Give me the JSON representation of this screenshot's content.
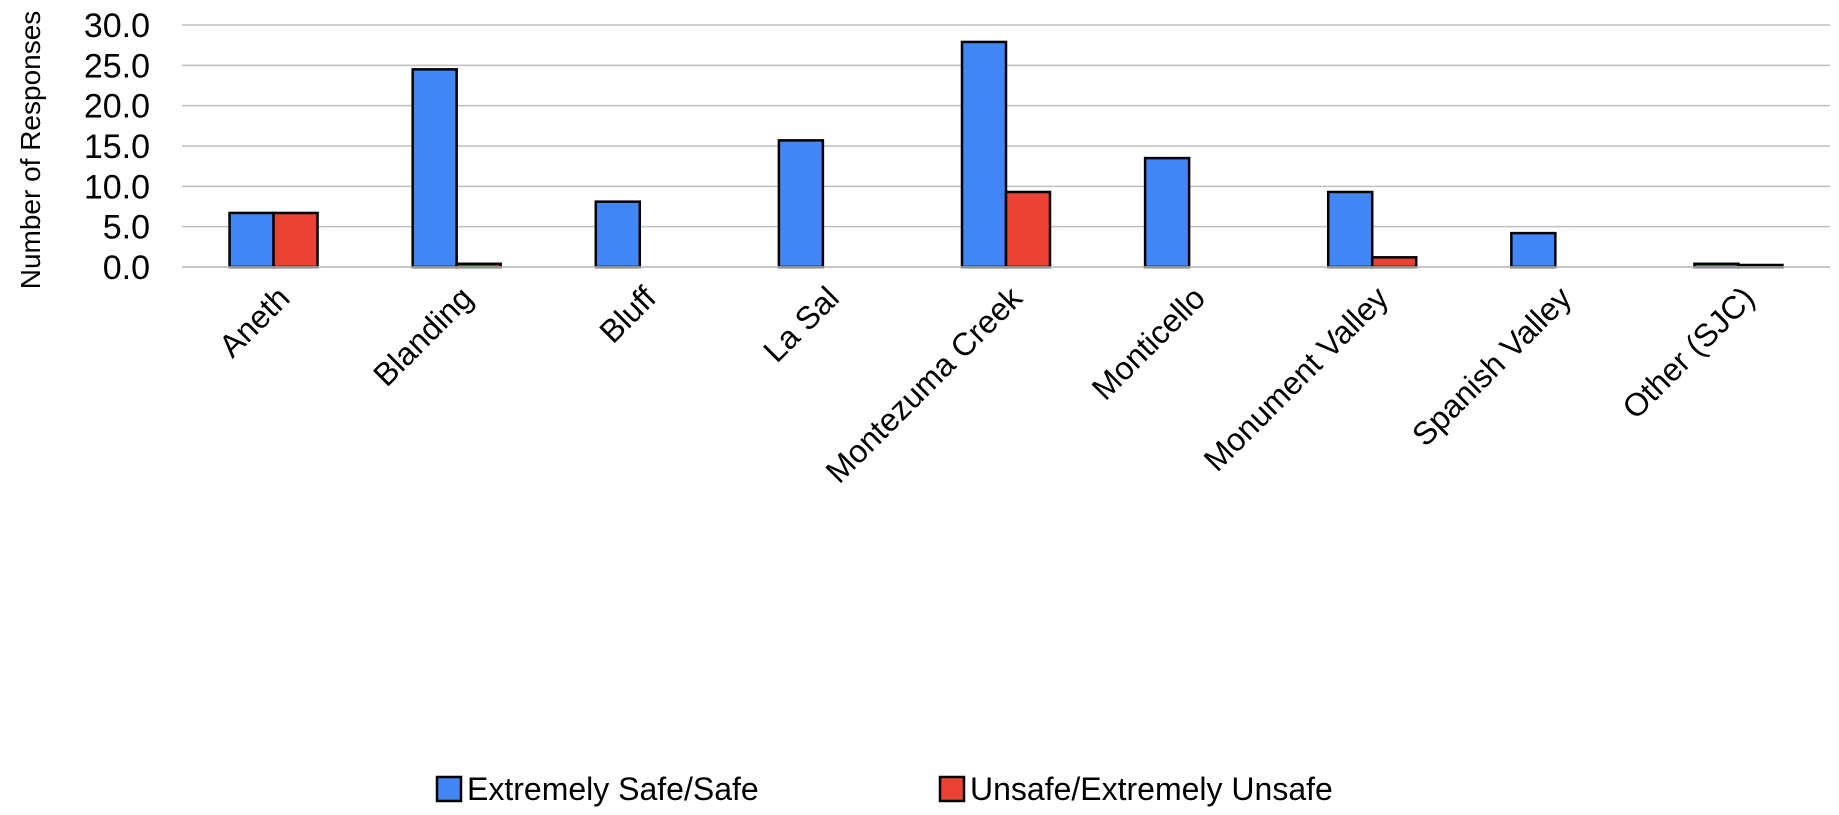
{
  "chart_data": {
    "type": "bar",
    "ylabel": "Number of Responses",
    "xlabel": "",
    "title": "",
    "categories": [
      "Aneth",
      "Blanding",
      "Bluff",
      "La Sal",
      "Montezuma Creek",
      "Monticello",
      "Monument Valley",
      "Spanish Valley",
      "Other (SJC)"
    ],
    "series": [
      {
        "name": "Extremely Safe/Safe",
        "color": "#4285f4",
        "values": [
          6.7,
          24.5,
          8.1,
          15.7,
          27.9,
          13.5,
          9.3,
          4.2,
          0.4
        ]
      },
      {
        "name": "Unsafe/Extremely Unsafe",
        "color": "#ea4335",
        "values": [
          6.7,
          0.4,
          0,
          0,
          9.3,
          0,
          1.2,
          0,
          0.2
        ]
      }
    ],
    "ylim": [
      0,
      30
    ],
    "y_ticks": [
      "0.0",
      "5.0",
      "10.0",
      "15.0",
      "20.0",
      "25.0",
      "30.0"
    ],
    "grid": true,
    "legend_position": "bottom"
  }
}
